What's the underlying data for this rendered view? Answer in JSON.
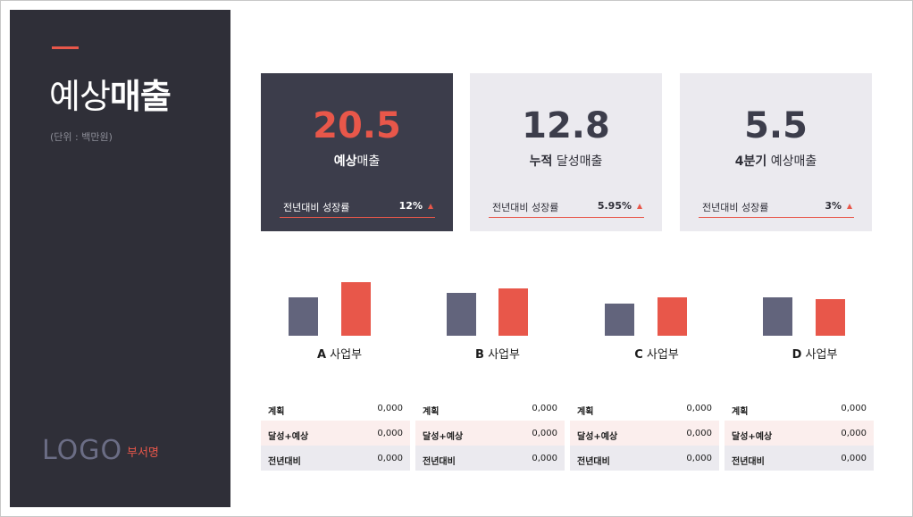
{
  "sidebar": {
    "title_light": "예상",
    "title_bold": "매출",
    "unit": "(단위 : 백만원)",
    "logo": "LOGO",
    "department": "부서명"
  },
  "cards": [
    {
      "value": "20.5",
      "label_bold": "예상",
      "label_rest": "매출",
      "growth_label": "전년대비 성장률",
      "growth_value": "12%"
    },
    {
      "value": "12.8",
      "label_bold": "누적",
      "label_rest": " 달성매출",
      "growth_label": "전년대비 성장률",
      "growth_value": "5.95%"
    },
    {
      "value": "5.5",
      "label_bold": "4분기",
      "label_rest": " 예상매출",
      "growth_label": "전년대비 성장률",
      "growth_value": "3%"
    }
  ],
  "chart_data": {
    "type": "bar",
    "categories": [
      "A 사업부",
      "B 사업부",
      "C 사업부",
      "D 사업부"
    ],
    "series": [
      {
        "values": [
          43,
          48,
          36,
          43
        ]
      },
      {
        "values": [
          60,
          53,
          43,
          41
        ]
      }
    ],
    "colors": {
      "plan": "#62647c",
      "actual": "#e8574a"
    }
  },
  "divisions": [
    {
      "letter": "A",
      "name": " 사업부"
    },
    {
      "letter": "B",
      "name": " 사업부"
    },
    {
      "letter": "C",
      "name": " 사업부"
    },
    {
      "letter": "D",
      "name": " 사업부"
    }
  ],
  "tables": [
    {
      "rows": [
        {
          "label": "계획",
          "value": "0,000"
        },
        {
          "label": "달성+예상",
          "value": "0,000"
        },
        {
          "label": "전년대비",
          "value": "0,000"
        }
      ]
    },
    {
      "rows": [
        {
          "label": "계획",
          "value": "0,000"
        },
        {
          "label": "달성+예상",
          "value": "0,000"
        },
        {
          "label": "전년대비",
          "value": "0,000"
        }
      ]
    },
    {
      "rows": [
        {
          "label": "계획",
          "value": "0,000"
        },
        {
          "label": "달성+예상",
          "value": "0,000"
        },
        {
          "label": "전년대비",
          "value": "0,000"
        }
      ]
    },
    {
      "rows": [
        {
          "label": "계획",
          "value": "0,000"
        },
        {
          "label": "달성+예상",
          "value": "0,000"
        },
        {
          "label": "전년대비",
          "value": "0,000"
        }
      ]
    }
  ],
  "colors": {
    "accent": "#e8574a",
    "dark": "#2f2f38",
    "card_dark": "#3c3d4b",
    "card_light": "#ebeaef"
  }
}
